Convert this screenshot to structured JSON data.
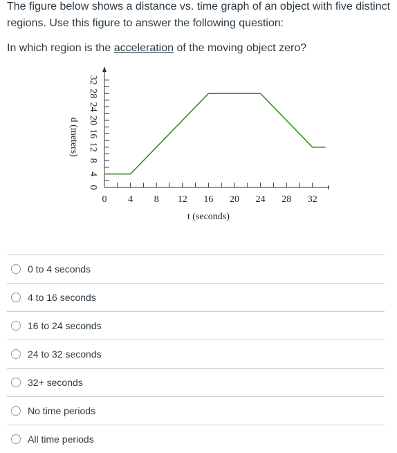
{
  "intro": "The figure below shows a distance vs. time graph of an object with five distinct regions. Use this figure to answer the following question:",
  "question": {
    "before": "In which region is the ",
    "underlined": "acceleration",
    "after": " of the moving object zero?"
  },
  "chart_data": {
    "type": "line",
    "title": "",
    "xlabel": "t (seconds)",
    "ylabel": "d (meters)",
    "x_ticks": [
      0,
      4,
      8,
      12,
      16,
      20,
      24,
      28,
      32
    ],
    "y_ticks": [
      0,
      4,
      8,
      12,
      16,
      20,
      24,
      28,
      32
    ],
    "xlim": [
      0,
      34
    ],
    "ylim": [
      0,
      34
    ],
    "grid": false,
    "series": [
      {
        "color": "#3a8a2c",
        "x": [
          0,
          4,
          16,
          24,
          32,
          34
        ],
        "y": [
          4,
          4,
          28,
          28,
          12,
          12
        ]
      }
    ]
  },
  "answers": [
    {
      "label": "0 to 4 seconds"
    },
    {
      "label": "4 to 16 seconds"
    },
    {
      "label": "16 to 24 seconds"
    },
    {
      "label": "24 to 32 seconds"
    },
    {
      "label": "32+ seconds"
    },
    {
      "label": "No time periods"
    },
    {
      "label": "All time periods"
    }
  ]
}
